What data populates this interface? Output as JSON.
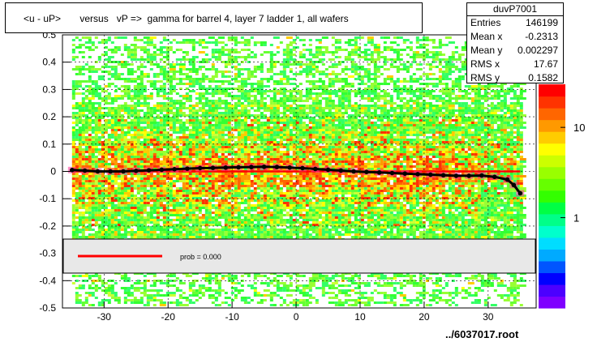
{
  "title": "<u - uP>       versus   vP =>  gamma for barrel 4, layer 7 ladder 1, all wafers",
  "stats": {
    "name": "duvP7001",
    "entries_label": "Entries",
    "entries": "146199",
    "meanx_label": "Mean x",
    "meanx": "-0.2313",
    "meany_label": "Mean y",
    "meany": "0.002297",
    "rmsx_label": "RMS x",
    "rmsx": "17.67",
    "rmsy_label": "RMS y",
    "rmsy": "0.1582"
  },
  "legend": {
    "label": "prob = 0.000"
  },
  "file_label": "../6037017.root",
  "colors": {
    "fit_line": "#ff0000",
    "profile": "#000000",
    "band": "#ff3399",
    "legend_bg": "#e8e8e8"
  },
  "chart_data": {
    "type": "heatmap",
    "title": "<u - uP>       versus   vP =>  gamma for barrel 4, layer 7 ladder 1, all wafers",
    "xlabel": "",
    "ylabel": "",
    "xlim": [
      -36.5,
      37.5
    ],
    "ylim": [
      -0.5,
      0.5
    ],
    "x_ticks": [
      -30,
      -20,
      -10,
      0,
      10,
      20,
      30
    ],
    "y_ticks": [
      -0.5,
      -0.4,
      -0.3,
      -0.2,
      -0.1,
      0,
      0.1,
      0.2,
      0.3,
      0.4,
      0.5
    ],
    "y_tick_labels": [
      "-0.5",
      "-0.4",
      "-0.3",
      "-0.2",
      "-0.1",
      "0",
      "0.1",
      "0.2",
      "0.3",
      "0.4",
      "0.5"
    ],
    "z_scale": "log",
    "z_tick_labels": [
      "1",
      "10"
    ],
    "z_tick_values": [
      1,
      10
    ],
    "z_range": [
      0.1,
      30
    ],
    "grid": true,
    "data_x_range": [
      -35,
      35
    ],
    "profile": {
      "x": [
        -35,
        -33,
        -31,
        -29,
        -27,
        -25,
        -23,
        -21,
        -19,
        -17,
        -15,
        -13,
        -11,
        -9,
        -7,
        -5,
        -3,
        -1,
        1,
        3,
        5,
        7,
        9,
        11,
        13,
        15,
        17,
        19,
        21,
        23,
        25,
        27,
        29,
        31,
        33,
        34,
        35
      ],
      "y": [
        0.005,
        0.003,
        0.0,
        0.0,
        0.0,
        0.002,
        0.004,
        0.006,
        0.008,
        0.01,
        0.012,
        0.013,
        0.014,
        0.015,
        0.016,
        0.017,
        0.016,
        0.014,
        0.012,
        0.009,
        0.006,
        0.003,
        0.0,
        -0.002,
        -0.004,
        -0.006,
        -0.008,
        -0.01,
        -0.012,
        -0.014,
        -0.016,
        -0.016,
        -0.015,
        -0.02,
        -0.03,
        -0.05,
        -0.08
      ]
    },
    "fit_line": {
      "x": [
        -35,
        35
      ],
      "y": [
        0.0,
        0.0
      ]
    }
  }
}
